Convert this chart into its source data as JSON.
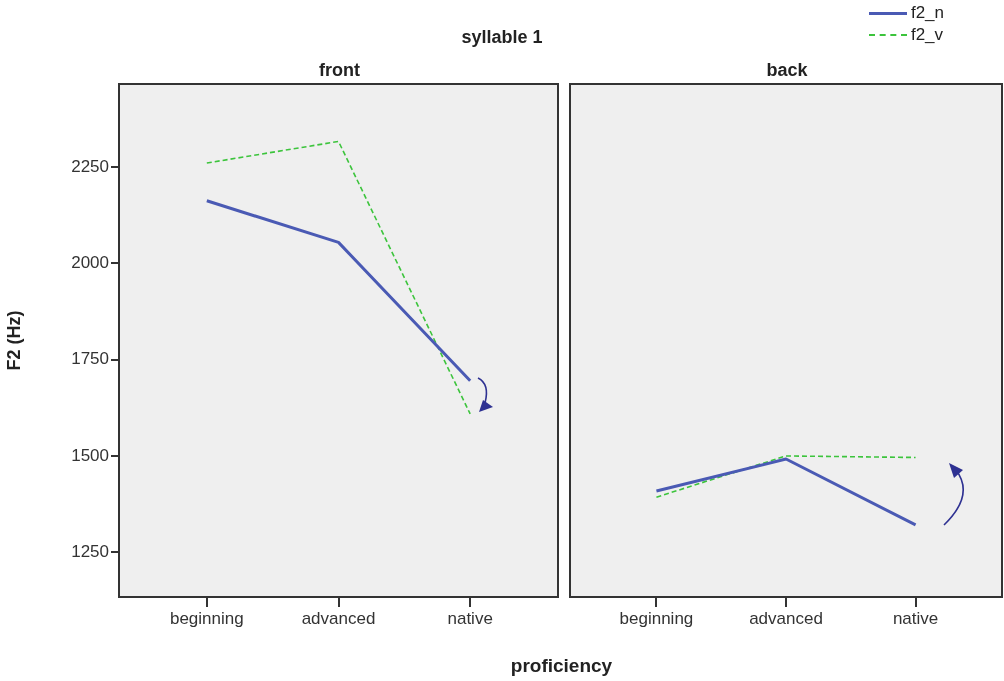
{
  "chart_data": [
    {
      "type": "line",
      "title": "front",
      "annotations": [
        "syllable 1"
      ],
      "xlabel": "proficiency",
      "ylabel": "F2 (Hz)",
      "categories": [
        "beginning",
        "advanced",
        "native"
      ],
      "ylim": [
        1134,
        2465
      ],
      "yticks": [
        1250,
        1500,
        1750,
        2000,
        2250
      ],
      "legend": "top right",
      "series": [
        {
          "name": "f2_n",
          "color": "#4a5ab4",
          "line_style": "solid",
          "values": [
            2162,
            2054,
            1695
          ]
        },
        {
          "name": "f2_v",
          "color": "#3cc43c",
          "line_style": "dashed",
          "values": [
            2260,
            2316,
            1609
          ]
        }
      ]
    },
    {
      "type": "line",
      "title": "back",
      "categories": [
        "beginning",
        "advanced",
        "native"
      ],
      "ylim": [
        1134,
        2465
      ],
      "yticks": [
        1250,
        1500,
        1750,
        2000,
        2250
      ],
      "tick_labels": "x",
      "series": [
        {
          "color": "#4a5ab4",
          "line_style": "solid",
          "values": [
            1409,
            1492,
            1321
          ]
        },
        {
          "color": "#3cc43c",
          "line_style": "dashed",
          "values": [
            1393,
            1500,
            1496
          ]
        }
      ]
    }
  ]
}
